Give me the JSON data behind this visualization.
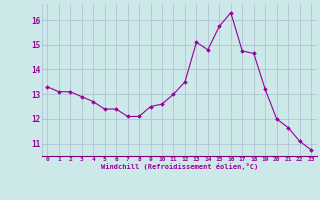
{
  "x": [
    0,
    1,
    2,
    3,
    4,
    5,
    6,
    7,
    8,
    9,
    10,
    11,
    12,
    13,
    14,
    15,
    16,
    17,
    18,
    19,
    20,
    21,
    22,
    23
  ],
  "y": [
    13.3,
    13.1,
    13.1,
    12.9,
    12.7,
    12.4,
    12.4,
    12.1,
    12.1,
    12.5,
    12.6,
    13.0,
    13.5,
    15.1,
    14.8,
    15.75,
    16.3,
    14.75,
    14.65,
    13.2,
    12.0,
    11.65,
    11.1,
    10.75
  ],
  "line_color": "#990099",
  "marker": "D",
  "marker_size": 1.8,
  "bg_color": "#cce8e8",
  "grid_color": "#aabbd0",
  "xlabel": "Windchill (Refroidissement éolien,°C)",
  "xlabel_color": "#990099",
  "tick_color": "#990099",
  "xlim": [
    -0.5,
    23.5
  ],
  "ylim": [
    10.5,
    16.65
  ],
  "yticks": [
    11,
    12,
    13,
    14,
    15,
    16
  ],
  "xticks": [
    0,
    1,
    2,
    3,
    4,
    5,
    6,
    7,
    8,
    9,
    10,
    11,
    12,
    13,
    14,
    15,
    16,
    17,
    18,
    19,
    20,
    21,
    22,
    23
  ]
}
